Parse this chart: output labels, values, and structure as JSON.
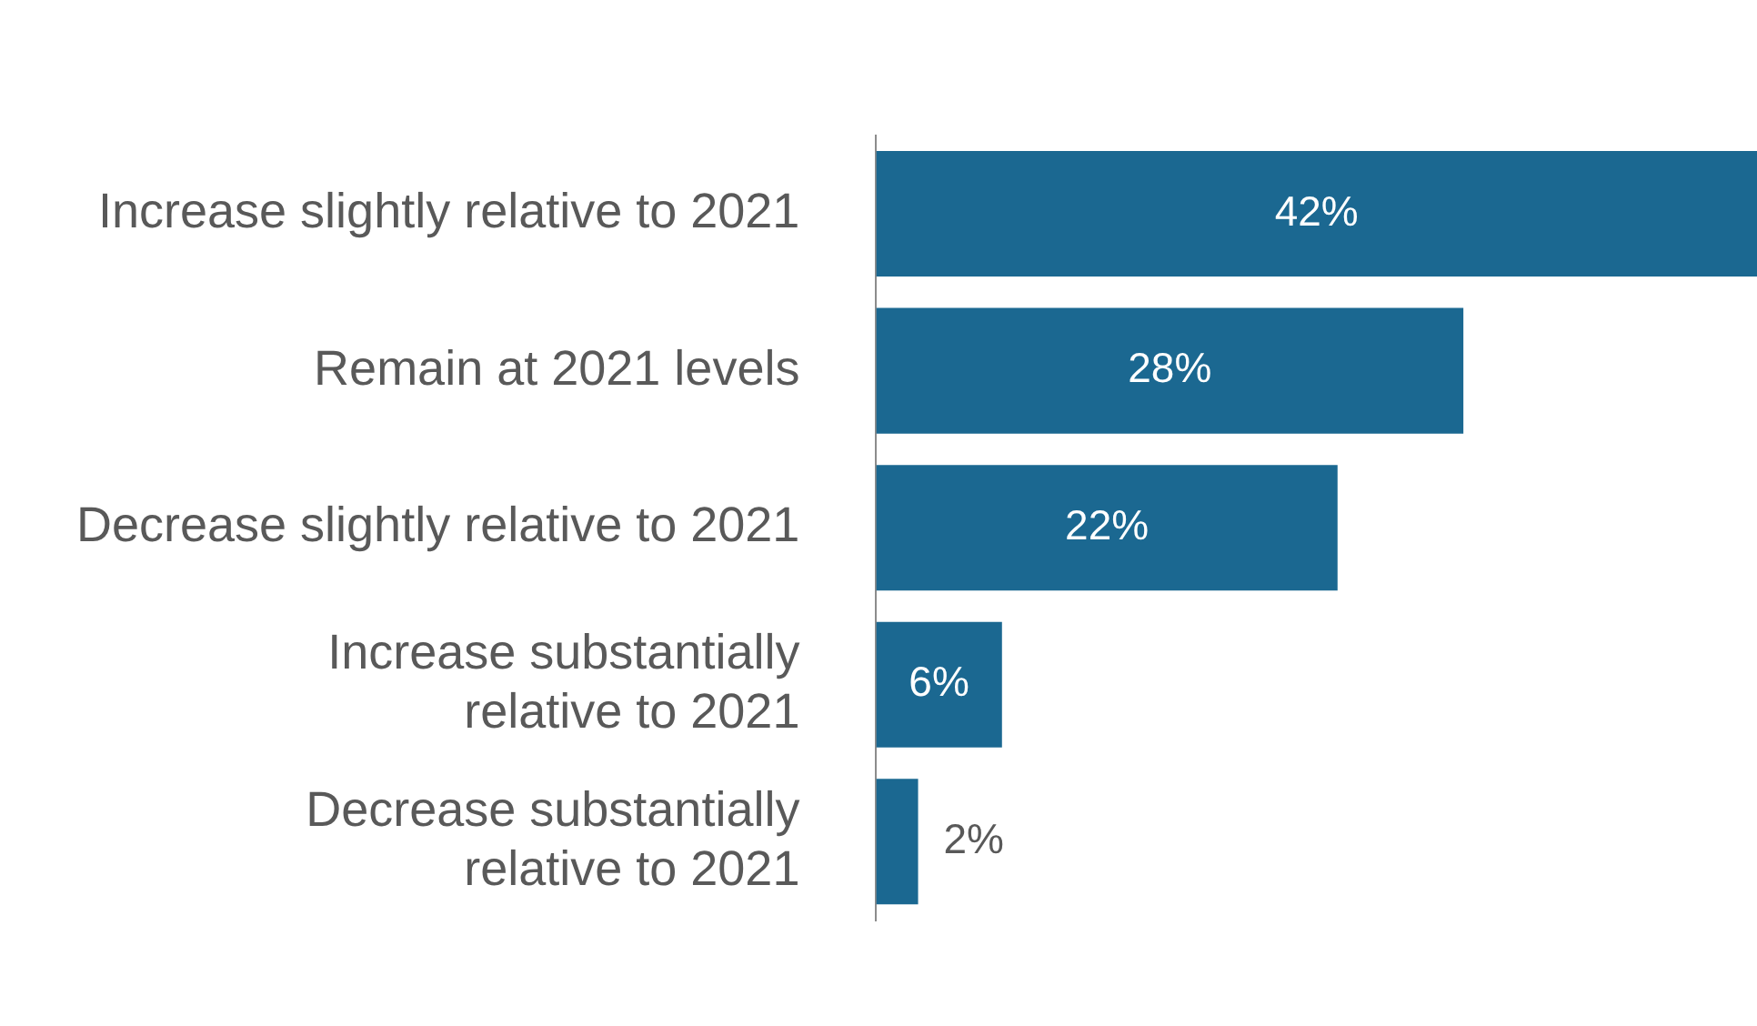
{
  "chart_data": {
    "type": "bar",
    "orientation": "horizontal",
    "categories": [
      "Increase slightly relative to 2021",
      "Remain at 2021 levels",
      "Decrease slightly relative to 2021",
      "Increase substantially relative to 2021",
      "Decrease substantially relative to 2021"
    ],
    "values": [
      42,
      28,
      22,
      6,
      2
    ],
    "value_labels": [
      "42%",
      "28%",
      "22%",
      "6%",
      "2%"
    ],
    "color": "#1b6891",
    "tick_labels": "y"
  }
}
